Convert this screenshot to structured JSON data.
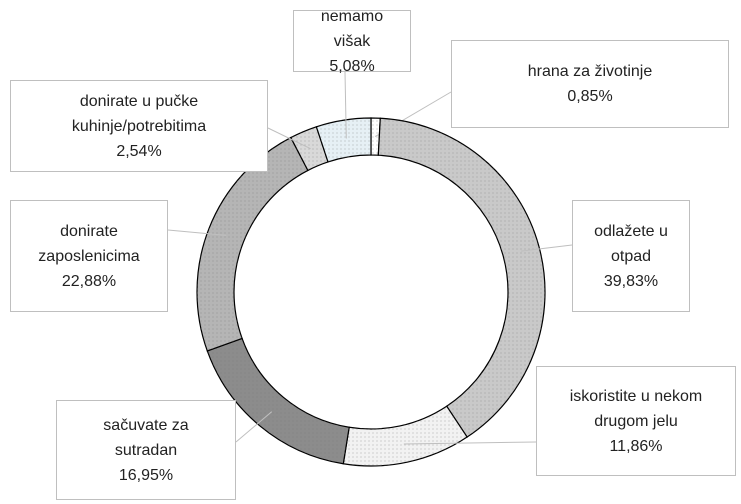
{
  "chart_data": {
    "type": "donut",
    "categories": [
      "hrana za životinje",
      "odlažete u otpad",
      "iskoristite u nekom drugom jelu",
      "sačuvate za sutradan",
      "donirate zaposlenicima",
      "donirate u pučke kuhinje/potrebitima",
      "nemamo višak"
    ],
    "values": [
      0.85,
      39.83,
      11.86,
      16.95,
      22.88,
      2.54,
      5.08
    ],
    "value_labels": [
      "0,85%",
      "39,83%",
      "11,86%",
      "16,95%",
      "22,88%",
      "2,54%",
      "5,08%"
    ],
    "colors": [
      "#ffffff",
      "#c9c9c9",
      "#f2f2f2",
      "#8c8c8c",
      "#b5b5b5",
      "#d9d9d9",
      "#e6f0f5"
    ]
  }
}
